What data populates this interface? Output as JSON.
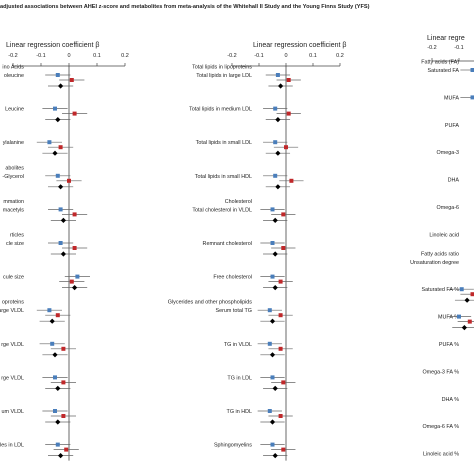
{
  "title": "adjusted associations between AHEI z-score and metabolites from meta-analysis of the Whitehall II Study and the Young Finns Study (YFS)",
  "colors": {
    "whitehall": "#4a7ebb",
    "yfs": "#c0282a",
    "meta": "#000000",
    "axis": "#444444",
    "ci": "#666666"
  },
  "chart_data": [
    {
      "type": "forest",
      "xlabel": "Linear regression coefficient β",
      "xlim": [
        -0.2,
        0.2
      ],
      "ticks": [
        -0.2,
        -0.1,
        0,
        0.1,
        0.2
      ],
      "tick_labels": [
        "-0.2",
        "-0.1",
        "0",
        "0.1",
        "0.2"
      ],
      "rows": [
        {
          "label": [
            "ino Acids",
            "oleucine"
          ],
          "est": [
            -0.04,
            0.01,
            -0.03
          ]
        },
        {
          "label": [
            "Leucine"
          ],
          "est": [
            -0.05,
            0.02,
            -0.04
          ]
        },
        {
          "label": [
            "ylalanine"
          ],
          "est": [
            -0.07,
            -0.03,
            -0.05
          ]
        },
        {
          "label": [
            "abolites",
            "-Glycerol"
          ],
          "est": [
            -0.04,
            0.0,
            -0.03
          ]
        },
        {
          "label": [
            "mmation",
            "macetyls"
          ],
          "est": [
            -0.03,
            0.02,
            -0.02
          ]
        },
        {
          "label": [
            "rticles",
            "cle size"
          ],
          "est": [
            -0.03,
            0.02,
            -0.02
          ]
        },
        {
          "label": [
            "cule size"
          ],
          "est": [
            0.03,
            0.01,
            0.02
          ]
        },
        {
          "label": [
            "oproteins",
            "large VLDL"
          ],
          "est": [
            -0.07,
            -0.04,
            -0.06
          ]
        },
        {
          "label": [
            "rge VLDL"
          ],
          "est": [
            -0.06,
            -0.02,
            -0.05
          ]
        },
        {
          "label": [
            "rge VLDL"
          ],
          "est": [
            -0.05,
            -0.02,
            -0.04
          ]
        },
        {
          "label": [
            "um VLDL"
          ],
          "est": [
            -0.05,
            -0.02,
            -0.04
          ]
        },
        {
          "label": [
            "cles in LDL"
          ],
          "est": [
            -0.04,
            -0.01,
            -0.03
          ]
        }
      ]
    },
    {
      "type": "forest",
      "xlabel": "Linear regression coefficient β",
      "xlim": [
        -0.2,
        0.2
      ],
      "ticks": [
        -0.2,
        -0.1,
        0,
        0.1,
        0.2
      ],
      "tick_labels": [
        "-0.2",
        "-0.1",
        "0",
        "0.1",
        "0.2"
      ],
      "rows": [
        {
          "label": [
            "Total lipids in lipoproteins",
            "Total lipids in large LDL"
          ],
          "est": [
            -0.03,
            0.01,
            -0.02
          ]
        },
        {
          "label": [
            "Total lipids in medium LDL"
          ],
          "est": [
            -0.04,
            0.01,
            -0.03
          ]
        },
        {
          "label": [
            "Total lipids in small LDL"
          ],
          "est": [
            -0.04,
            0.0,
            -0.03
          ]
        },
        {
          "label": [
            "Total lipids in small HDL"
          ],
          "est": [
            -0.04,
            0.02,
            -0.03
          ]
        },
        {
          "label": [
            "Cholesterol",
            "Total cholesterol in VLDL"
          ],
          "est": [
            -0.05,
            -0.01,
            -0.04
          ]
        },
        {
          "label": [
            "Remnant cholesterol"
          ],
          "est": [
            -0.05,
            -0.01,
            -0.04
          ]
        },
        {
          "label": [
            "Free cholesterol"
          ],
          "est": [
            -0.05,
            -0.02,
            -0.04
          ]
        },
        {
          "label": [
            "Glycerides and other phospholipids",
            "Serum total TG"
          ],
          "est": [
            -0.06,
            -0.02,
            -0.05
          ]
        },
        {
          "label": [
            "TG in VLDL"
          ],
          "est": [
            -0.06,
            -0.02,
            -0.05
          ]
        },
        {
          "label": [
            "TG in LDL"
          ],
          "est": [
            -0.05,
            -0.01,
            -0.04
          ]
        },
        {
          "label": [
            "TG in HDL"
          ],
          "est": [
            -0.06,
            -0.02,
            -0.05
          ]
        },
        {
          "label": [
            "Sphingomyelins"
          ],
          "est": [
            -0.05,
            -0.01,
            -0.04
          ]
        }
      ]
    },
    {
      "type": "forest",
      "xlabel": "Linear regre",
      "xlim": [
        -0.2,
        0.2
      ],
      "ticks": [
        -0.2,
        -0.1
      ],
      "tick_labels": [
        "-0.2",
        "-0.1"
      ],
      "rows": [
        {
          "label": [
            "Fatty acids (FA)",
            "Saturated FA"
          ],
          "est": [
            -0.05,
            -0.02,
            -0.04
          ]
        },
        {
          "label": [
            "MUFA"
          ],
          "est": [
            -0.05,
            -0.01,
            -0.03
          ]
        },
        {
          "label": [
            "PUFA"
          ],
          "est": [
            0.01,
            0.03,
            0.02
          ]
        },
        {
          "label": [
            "Omega-3"
          ],
          "est": [
            0.03,
            0.05,
            0.04
          ]
        },
        {
          "label": [
            "DHA"
          ],
          "est": [
            0.03,
            0.05,
            0.04
          ]
        },
        {
          "label": [
            "Omega-6"
          ],
          "est": [
            0.0,
            0.02,
            0.01
          ]
        },
        {
          "label": [
            "Linoleic acid"
          ],
          "est": [
            0.0,
            0.02,
            0.01
          ]
        },
        {
          "label": [
            "Fatty acids ratio",
            "Unsaturation degree"
          ],
          "est": [
            0.02,
            0.04,
            0.03
          ]
        },
        {
          "label": [
            "Saturated FA %"
          ],
          "est": [
            -0.09,
            -0.05,
            -0.07
          ]
        },
        {
          "label": [
            "MUFA %"
          ],
          "est": [
            -0.1,
            -0.06,
            -0.08
          ]
        },
        {
          "label": [
            "PUFA %"
          ],
          "est": [
            0.03,
            0.05,
            0.04
          ]
        },
        {
          "label": [
            "Omega-3 FA %"
          ],
          "est": [
            0.04,
            0.06,
            0.05
          ]
        },
        {
          "label": [
            "DHA %"
          ],
          "est": [
            0.03,
            0.05,
            0.04
          ]
        },
        {
          "label": [
            "Omega-6 FA %"
          ],
          "est": [
            0.02,
            0.04,
            0.03
          ]
        },
        {
          "label": [
            "Linoleic acid %"
          ],
          "est": [
            0.02,
            0.04,
            0.03
          ]
        }
      ]
    }
  ]
}
